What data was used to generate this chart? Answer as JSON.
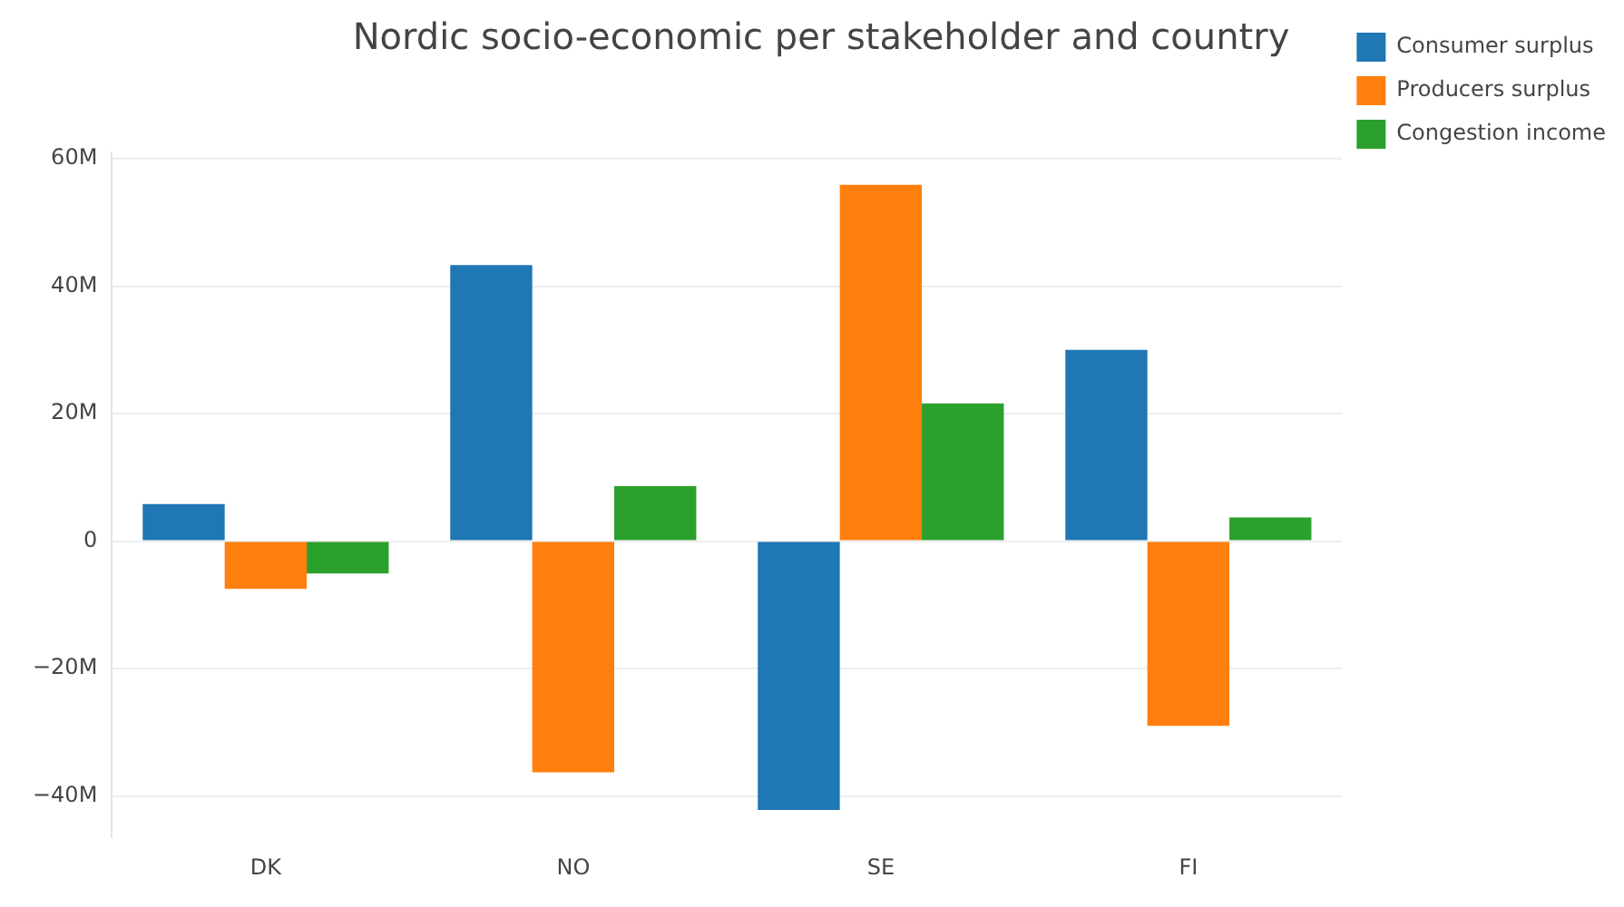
{
  "chart_data": {
    "type": "bar",
    "title": "Nordic socio-economic per stakeholder and country",
    "categories": [
      "DK",
      "NO",
      "SE",
      "FI"
    ],
    "series": [
      {
        "name": "Consumer surplus",
        "color": "#1f77b4",
        "values": [
          5800000,
          43300000,
          -42200000,
          30000000
        ]
      },
      {
        "name": "Producers surplus",
        "color": "#ff7f0e",
        "values": [
          -7500000,
          -36300000,
          55900000,
          -29000000
        ]
      },
      {
        "name": "Congestion income",
        "color": "#2ca02c",
        "values": [
          -5100000,
          8600000,
          21600000,
          3700000
        ]
      }
    ],
    "ylim": [
      -46500000,
      61000000
    ],
    "yticks": [
      {
        "value": -40000000,
        "label": "−40M"
      },
      {
        "value": -20000000,
        "label": "−20M"
      },
      {
        "value": 0,
        "label": "0"
      },
      {
        "value": 20000000,
        "label": "20M"
      },
      {
        "value": 40000000,
        "label": "40M"
      },
      {
        "value": 60000000,
        "label": "60M"
      }
    ],
    "grid": "y",
    "legend": "top right"
  }
}
